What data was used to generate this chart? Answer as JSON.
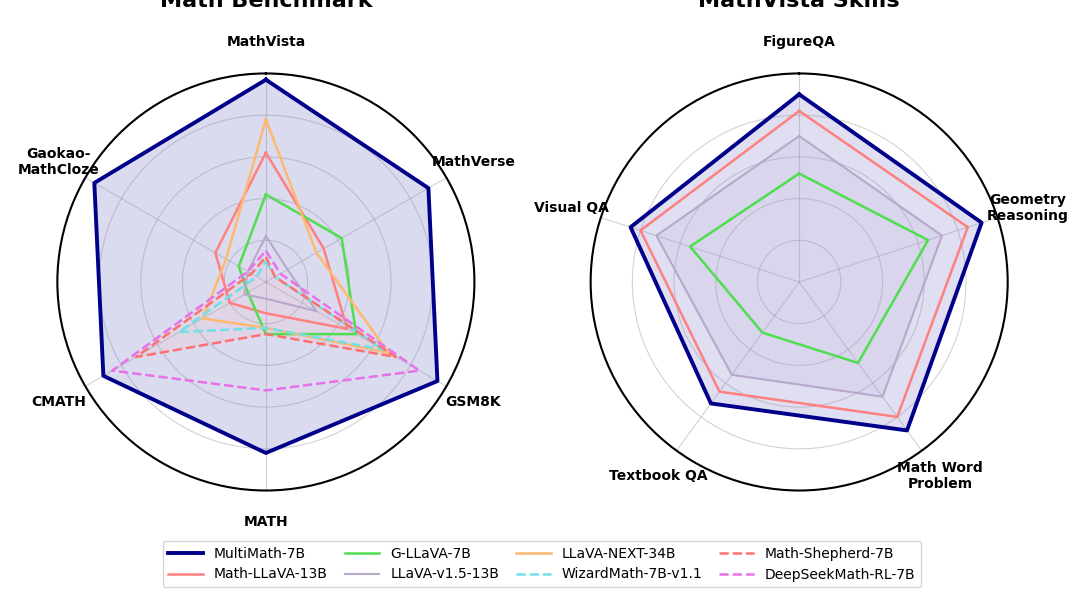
{
  "title_left": "Math Benchmark",
  "title_right": "MathVista Skills",
  "left_categories": [
    "MathVista",
    "MathVerse",
    "GSM8K",
    "MATH",
    "CMATH",
    "Gaokao-\nMathCloze"
  ],
  "right_categories": [
    "FigureQA",
    "Geometry\nReasoning",
    "Math Word\nProblem",
    "Textbook QA",
    "Visual QA"
  ],
  "left_data": {
    "MultiMath-7B": [
      0.97,
      0.9,
      0.95,
      0.82,
      0.9,
      0.95
    ],
    "Math-LLaVA-13B": [
      0.62,
      0.32,
      0.45,
      0.15,
      0.2,
      0.28
    ],
    "G-LLaVA-7B": [
      0.42,
      0.42,
      0.5,
      0.25,
      0.1,
      0.15
    ],
    "LLaVA-v1.5-13B": [
      0.22,
      0.12,
      0.28,
      0.08,
      0.12,
      0.1
    ],
    "LLaVA-NEXT-34B": [
      0.78,
      0.28,
      0.68,
      0.22,
      0.35,
      0.22
    ],
    "WizardMath-7B-v1.1": [
      0.1,
      0.05,
      0.65,
      0.22,
      0.48,
      0.05
    ],
    "Math-Shepherd-7B": [
      0.12,
      0.05,
      0.72,
      0.25,
      0.72,
      0.08
    ],
    "DeepSeekMath-RL-7B": [
      0.15,
      0.08,
      0.85,
      0.52,
      0.85,
      0.1
    ]
  },
  "right_data": {
    "MultiMath-7B": [
      0.9,
      0.92,
      0.88,
      0.72,
      0.85
    ],
    "Math-LLaVA-13B": [
      0.82,
      0.85,
      0.8,
      0.65,
      0.8
    ],
    "G-LLaVA-7B": [
      0.52,
      0.65,
      0.48,
      0.3,
      0.55
    ],
    "LLaVA-v1.5-13B": [
      0.7,
      0.72,
      0.68,
      0.55,
      0.72
    ]
  },
  "colors": {
    "MultiMath-7B": "#00008B",
    "Math-LLaVA-13B": "#FF8080",
    "G-LLaVA-7B": "#50DD50",
    "LLaVA-v1.5-13B": "#B8A8CC",
    "LLaVA-NEXT-34B": "#FFB870",
    "WizardMath-7B-v1.1": "#70E0E8",
    "Math-Shepherd-7B": "#FF7070",
    "DeepSeekMath-RL-7B": "#E870E8"
  },
  "linestyles": {
    "MultiMath-7B": "solid",
    "Math-LLaVA-13B": "solid",
    "G-LLaVA-7B": "solid",
    "LLaVA-v1.5-13B": "solid",
    "LLaVA-NEXT-34B": "solid",
    "WizardMath-7B-v1.1": "dashed",
    "Math-Shepherd-7B": "dashed",
    "DeepSeekMath-RL-7B": "dashed"
  },
  "linewidths": {
    "MultiMath-7B": 2.8,
    "Math-LLaVA-13B": 1.8,
    "G-LLaVA-7B": 1.8,
    "LLaVA-v1.5-13B": 1.5,
    "LLaVA-NEXT-34B": 1.8,
    "WizardMath-7B-v1.1": 1.8,
    "Math-Shepherd-7B": 1.8,
    "DeepSeekMath-RL-7B": 1.8
  },
  "left_fill": {
    "MultiMath-7B": 0.28,
    "Math-LLaVA-13B": 0.0,
    "G-LLaVA-7B": 0.0,
    "LLaVA-v1.5-13B": 0.0,
    "LLaVA-NEXT-34B": 0.0,
    "WizardMath-7B-v1.1": 0.0,
    "Math-Shepherd-7B": 0.12,
    "DeepSeekMath-RL-7B": 0.0
  },
  "right_fill": {
    "MultiMath-7B": 0.25,
    "Math-LLaVA-13B": 0.0,
    "G-LLaVA-7B": 0.0,
    "LLaVA-v1.5-13B": 0.2
  },
  "left_fill_colors": {
    "MultiMath-7B": "#8080C8",
    "Math-Shepherd-7B": "#FFB0B0",
    "DeepSeekMath-RL-7B": "#E8B0E8"
  },
  "right_fill_colors": {
    "MultiMath-7B": "#8080C8",
    "LLaVA-v1.5-13B": "#C0B0D8"
  }
}
